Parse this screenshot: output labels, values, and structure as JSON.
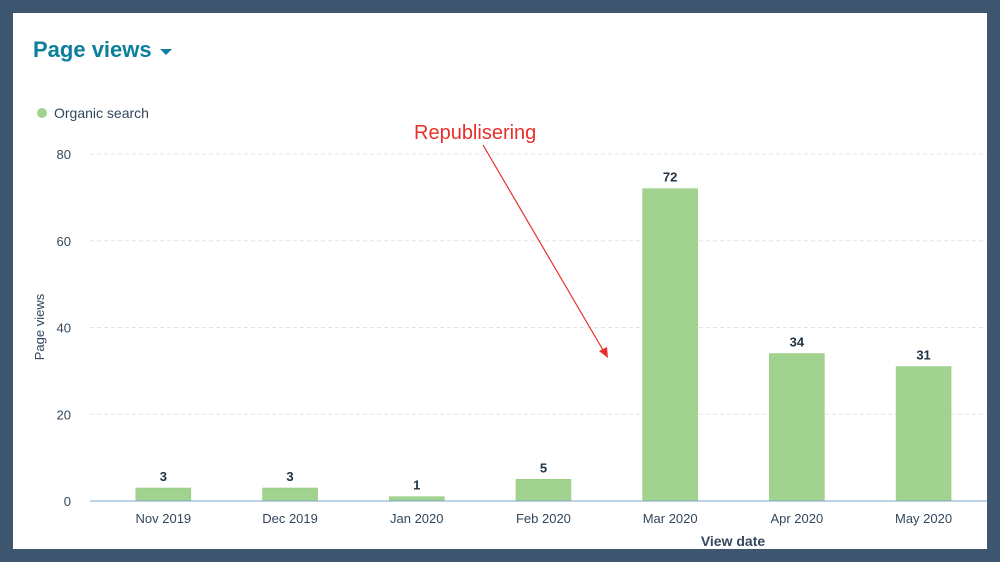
{
  "header": {
    "title": "Page views"
  },
  "legend": {
    "items": [
      {
        "label": "Organic search",
        "color": "#a2d28f"
      }
    ]
  },
  "annotation": {
    "text": "Republisering",
    "color": "#e8302a"
  },
  "chart_data": {
    "type": "bar",
    "title": "Page views",
    "xlabel": "View date",
    "ylabel": "Page views",
    "categories": [
      "Nov 2019",
      "Dec 2019",
      "Jan 2020",
      "Feb 2020",
      "Mar 2020",
      "Apr 2020",
      "May 2020"
    ],
    "series": [
      {
        "name": "Organic search",
        "values": [
          3,
          3,
          1,
          5,
          72,
          34,
          31
        ],
        "color": "#a2d28f"
      }
    ],
    "ylim": [
      0,
      80
    ],
    "yticks": [
      0,
      20,
      40,
      60,
      80
    ],
    "grid": true,
    "legend": "top-left",
    "data_labels": true
  }
}
